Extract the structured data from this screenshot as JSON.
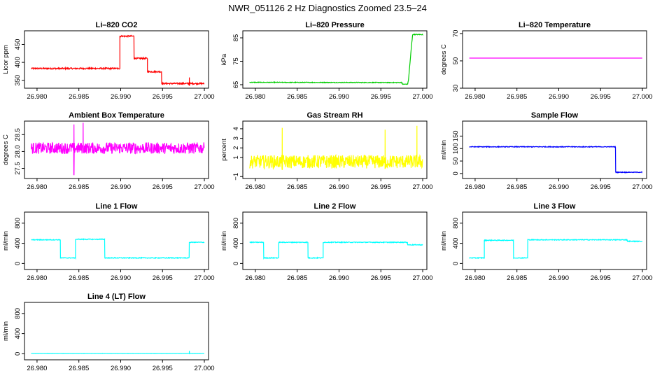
{
  "figure": {
    "title": "NWR_051126  2 Hz Diagnostics Zoomed 23.5–24"
  },
  "chart_data": [
    {
      "type": "line",
      "title": "Li–820 CO2",
      "ylabel": "Licor ppm",
      "color": "#ff0000",
      "xlim": [
        26.9785,
        27.0005
      ],
      "ylim": [
        328,
        488
      ],
      "xticks": [
        26.98,
        26.985,
        26.99,
        26.995,
        27.0
      ],
      "xtick_labels": [
        "26.980",
        "26.985",
        "26.990",
        "26.995",
        "27.000"
      ],
      "yticks": [
        350,
        400,
        450
      ],
      "ytick_labels": [
        "350",
        "400",
        "450"
      ],
      "noise": 2,
      "spikes": [
        [
          26.9982,
          335,
          358
        ]
      ],
      "segments": [
        [
          26.9793,
          26.9899,
          383
        ],
        [
          26.9899,
          26.9916,
          473
        ],
        [
          26.9916,
          26.9932,
          411
        ],
        [
          26.9932,
          26.9949,
          374
        ],
        [
          26.9949,
          27.0,
          341
        ]
      ]
    },
    {
      "type": "line",
      "title": "Li–820 Pressure",
      "ylabel": "kPa",
      "color": "#00cc00",
      "xlim": [
        26.9785,
        27.0005
      ],
      "ylim": [
        63.5,
        88
      ],
      "xticks": [
        26.98,
        26.985,
        26.99,
        26.995,
        27.0
      ],
      "xtick_labels": [
        "26.980",
        "26.985",
        "26.990",
        "26.995",
        "27.000"
      ],
      "yticks": [
        65,
        75,
        85
      ],
      "ytick_labels": [
        "65",
        "75",
        "85"
      ],
      "noise": 0.15,
      "points": [
        [
          26.9793,
          66.0
        ],
        [
          26.9975,
          65.9
        ],
        [
          26.9976,
          65.2
        ],
        [
          26.9982,
          65.2
        ],
        [
          26.9983,
          67
        ],
        [
          26.9985,
          75
        ],
        [
          26.9987,
          83
        ],
        [
          26.9988,
          86.4
        ],
        [
          27.0,
          86.4
        ]
      ]
    },
    {
      "type": "line",
      "title": "Li–820 Temperature",
      "ylabel": "degrees C",
      "color": "#ff00ff",
      "xlim": [
        26.9785,
        27.0005
      ],
      "ylim": [
        30,
        72
      ],
      "xticks": [
        26.98,
        26.985,
        26.99,
        26.995,
        27.0
      ],
      "xtick_labels": [
        "26.980",
        "26.985",
        "26.990",
        "26.995",
        "27.000"
      ],
      "yticks": [
        30,
        50,
        70
      ],
      "ytick_labels": [
        "30",
        "50",
        "70"
      ],
      "noise": 0,
      "segments": [
        [
          26.9793,
          27.0,
          52
        ]
      ]
    },
    {
      "type": "line",
      "title": "Ambient Box Temperature",
      "ylabel": "degrees C",
      "color": "#ff00ff",
      "xlim": [
        26.9785,
        27.0005
      ],
      "ylim": [
        27.2,
        28.9
      ],
      "xticks": [
        26.98,
        26.985,
        26.99,
        26.995,
        27.0
      ],
      "xtick_labels": [
        "26.980",
        "26.985",
        "26.990",
        "26.995",
        "27.000"
      ],
      "yticks": [
        27.5,
        28.0,
        28.5
      ],
      "ytick_labels": [
        "27.5",
        "28.0",
        "28.5"
      ],
      "noise": 0.17,
      "spikes": [
        [
          26.9844,
          27.3,
          28.8
        ],
        [
          26.9855,
          28.3,
          28.85
        ]
      ],
      "segments": [
        [
          26.9793,
          27.0,
          28.1
        ]
      ]
    },
    {
      "type": "line",
      "title": "Gas Stream RH",
      "ylabel": "percent",
      "color": "#ffff00",
      "xlim": [
        26.9785,
        27.0005
      ],
      "ylim": [
        -1.2,
        4.8
      ],
      "xticks": [
        26.98,
        26.985,
        26.99,
        26.995,
        27.0
      ],
      "xtick_labels": [
        "26.980",
        "26.985",
        "26.990",
        "26.995",
        "27.000"
      ],
      "yticks": [
        -1,
        1,
        2,
        3,
        4
      ],
      "ytick_labels": [
        "−1",
        "1",
        "2",
        "3",
        "4"
      ],
      "noise": 0.7,
      "spikes": [
        [
          26.9832,
          -0.3,
          4.1
        ],
        [
          26.9955,
          -0.2,
          3.9
        ],
        [
          26.9993,
          0.1,
          4.3
        ]
      ],
      "segments": [
        [
          26.9793,
          27.0,
          0.55
        ]
      ]
    },
    {
      "type": "line",
      "title": "Sample Flow",
      "ylabel": "ml/min",
      "color": "#0000ff",
      "xlim": [
        26.9785,
        27.0005
      ],
      "ylim": [
        -20,
        210
      ],
      "xticks": [
        26.98,
        26.985,
        26.99,
        26.995,
        27.0
      ],
      "xtick_labels": [
        "26.980",
        "26.985",
        "26.990",
        "26.995",
        "27.000"
      ],
      "yticks": [
        0,
        50,
        100,
        150
      ],
      "ytick_labels": [
        "0",
        "50",
        "100",
        "150"
      ],
      "noise": 1.5,
      "segments": [
        [
          26.9793,
          26.9968,
          107
        ],
        [
          26.9968,
          27.0,
          5
        ]
      ]
    },
    {
      "type": "line",
      "title": "Line 1 Flow",
      "ylabel": "ml/min",
      "color": "#00ffff",
      "xlim": [
        26.9785,
        27.0005
      ],
      "ylim": [
        -120,
        1020
      ],
      "xticks": [
        26.98,
        26.985,
        26.99,
        26.995,
        27.0
      ],
      "xtick_labels": [
        "26.980",
        "26.985",
        "26.990",
        "26.995",
        "27.000"
      ],
      "yticks": [
        0,
        400,
        800
      ],
      "ytick_labels": [
        "0",
        "400",
        "800"
      ],
      "noise": 8,
      "segments": [
        [
          26.9793,
          26.9828,
          470
        ],
        [
          26.9828,
          26.9846,
          110
        ],
        [
          26.9846,
          26.9881,
          480
        ],
        [
          26.9881,
          26.9982,
          110
        ],
        [
          26.9982,
          27.0,
          420
        ]
      ]
    },
    {
      "type": "line",
      "title": "Line 2 Flow",
      "ylabel": "ml/min",
      "color": "#00ffff",
      "xlim": [
        26.9785,
        27.0005
      ],
      "ylim": [
        -120,
        1020
      ],
      "xticks": [
        26.98,
        26.985,
        26.99,
        26.995,
        27.0
      ],
      "xtick_labels": [
        "26.980",
        "26.985",
        "26.990",
        "26.995",
        "27.000"
      ],
      "yticks": [
        0,
        400,
        800
      ],
      "ytick_labels": [
        "0",
        "400",
        "800"
      ],
      "noise": 8,
      "segments": [
        [
          26.9793,
          26.981,
          420
        ],
        [
          26.981,
          26.9828,
          110
        ],
        [
          26.9828,
          26.9863,
          420
        ],
        [
          26.9863,
          26.9881,
          110
        ],
        [
          26.9881,
          26.9982,
          420
        ],
        [
          26.9982,
          27.0,
          370
        ]
      ]
    },
    {
      "type": "line",
      "title": "Line 3 Flow",
      "ylabel": "ml/min",
      "color": "#00ffff",
      "xlim": [
        26.9785,
        27.0005
      ],
      "ylim": [
        -120,
        1020
      ],
      "xticks": [
        26.98,
        26.985,
        26.99,
        26.995,
        27.0
      ],
      "xtick_labels": [
        "26.980",
        "26.985",
        "26.990",
        "26.995",
        "27.000"
      ],
      "yticks": [
        0,
        400,
        800
      ],
      "ytick_labels": [
        "0",
        "400",
        "800"
      ],
      "noise": 8,
      "segments": [
        [
          26.9793,
          26.9811,
          110
        ],
        [
          26.9811,
          26.9846,
          460
        ],
        [
          26.9846,
          26.9863,
          110
        ],
        [
          26.9863,
          26.9982,
          470
        ],
        [
          26.9982,
          27.0,
          440
        ]
      ]
    },
    {
      "type": "line",
      "title": "Line 4 (LT) Flow",
      "ylabel": "ml/min",
      "color": "#00ffff",
      "xlim": [
        26.9785,
        27.0005
      ],
      "ylim": [
        -120,
        1020
      ],
      "xticks": [
        26.98,
        26.985,
        26.99,
        26.995,
        27.0
      ],
      "xtick_labels": [
        "26.980",
        "26.985",
        "26.990",
        "26.995",
        "27.000"
      ],
      "yticks": [
        0,
        400,
        800
      ],
      "ytick_labels": [
        "0",
        "400",
        "800"
      ],
      "noise": 2,
      "spikes": [
        [
          26.9982,
          5,
          60
        ]
      ],
      "segments": [
        [
          26.9793,
          27.0,
          8
        ]
      ]
    }
  ]
}
